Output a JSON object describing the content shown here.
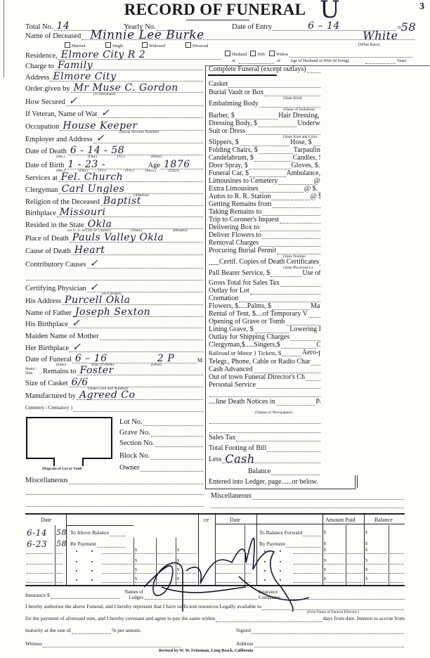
{
  "header": {
    "title": "RECORD OF FUNERAL",
    "page_mark": "U",
    "page_number": "3",
    "total_no_label": "Total No.",
    "total_no_value": "14",
    "yearly_no_label": "Yearly No.",
    "date_of_entry_label": "Date of Entry",
    "date_of_entry_value": "6 – 14",
    "year_prefix": "19",
    "year_value": "58"
  },
  "deceased": {
    "name_label": "Name of Deceased",
    "name_value": "Minnie Lee Burke",
    "race_value": "White",
    "race_note": "(What Race)",
    "marital": [
      "Married",
      "Single",
      "Widowed",
      "Divorced"
    ],
    "spouse_boxes": [
      "Husband",
      "Wife",
      "Widow"
    ],
    "spouse_or": "or",
    "spouse_of": "of",
    "spouse_age_label": "Age of Husband or Wife (if living)",
    "spouse_age_unit": "Years",
    "residence_label": "Residence,",
    "residence_value": "Elmore City R 2"
  },
  "left_fields": [
    {
      "label": "Charge to",
      "value": "Family"
    },
    {
      "label": "Address",
      "value": "Elmore City"
    },
    {
      "label": "Order given by",
      "value": "Mr Muse C. Gordon",
      "note": "(or informant)"
    },
    {
      "label": "How Secured",
      "value": "✓"
    },
    {
      "label": "If Veteran, Name of War",
      "value": "✓"
    },
    {
      "label": "Occupation",
      "value": "House Keeper",
      "note": "(Social Security Number)"
    },
    {
      "label": "Employer and Address",
      "value": "✓"
    },
    {
      "label": "Date of Death",
      "value": "6 - 14 - 58",
      "notes": [
        "(Mo.)",
        "(Day)",
        "(Yr.)",
        "(Hour)"
      ]
    },
    {
      "label": "Date of Birth",
      "value": "1 - 23 -",
      "suffix": "Age",
      "suffix_value": "1876",
      "notes": [
        "(Mo.)",
        "(Day)",
        "(Yr.)",
        "(Yrs.)",
        "(Mos.)",
        "(Days)"
      ]
    },
    {
      "label": "Services at",
      "value": "Fel. Church"
    },
    {
      "label": "Clergyman",
      "value": "Carl Ungles",
      "note": "(Address)"
    },
    {
      "label": "Religion of the Deceased",
      "value": "Baptist"
    },
    {
      "label": "Birthplace",
      "value": "Missouri"
    },
    {
      "label": "Resided in the State",
      "value": "Okla",
      "notes": [
        "(or U. S. or City or County)",
        "(Years)",
        "(Months)"
      ]
    },
    {
      "label": "Place of Death",
      "value": "Pauls Valley Okla"
    },
    {
      "label": "Cause of Death",
      "value": "Heart"
    },
    {
      "label": "Contributory Causes",
      "value": "✓"
    },
    {
      "label": "",
      "value": ""
    },
    {
      "label": "Certifying Physician",
      "value": "✓",
      "note": "(or Coroner)"
    },
    {
      "label": "His Address",
      "value": "Purcell Okla"
    },
    {
      "label": "Name of Father",
      "value": "Joseph Sexton"
    },
    {
      "label": "His Birthplace",
      "value": "✓"
    },
    {
      "label": "Maiden Name of Mother",
      "value": ""
    },
    {
      "label": "Her Birthplace",
      "value": "✓"
    },
    {
      "label": "Date of Funeral",
      "value": "6 –   16",
      "suffix": "",
      "suffix_value": "2 P",
      "end": "M.",
      "notes": [
        "(Date)",
        "(Day of Week)",
        "(Hour)"
      ]
    },
    {
      "label": "Remains to",
      "prefix": "Motor / Ship",
      "value": "Foster"
    },
    {
      "label": "Size of Casket",
      "value": "6/6",
      "note": "(State Color and Number)"
    },
    {
      "label": "Manufactured by",
      "value": "Agreed Co"
    },
    {
      "label": "Cemetery / Crematory }",
      "value": ""
    }
  ],
  "cemetery": {
    "diagram_caption": "Diagram of Lot or Vault",
    "lot_label": "Lot No.",
    "grave_label": "Grave No.",
    "section_label": "Section No.",
    "block_label": "Block No.",
    "owner_label": "Owner",
    "misc_label": "Miscellaneous"
  },
  "charges": [
    {
      "label": "Complete Funeral (except outlays)"
    },
    {
      "label": "Casket"
    },
    {
      "label": "Burial Vault or Box",
      "note": "(State Kind)"
    },
    {
      "label": "Embalming Body",
      "note": "(Name of Embalmer"
    },
    {
      "label": "Barber, $",
      "label2": "Hair Dressing,"
    },
    {
      "label": "Dressing Body, $",
      "label2": "Underwe"
    },
    {
      "label": "Suit or Dress",
      "note": "(State Kind and Color"
    },
    {
      "label": "Slippers, $",
      "label2": "Hose, $"
    },
    {
      "label": "Folding Chairs, $",
      "label2": "Tarpaulin, $"
    },
    {
      "label": "Candelabrum, $",
      "label2": "Candles, $."
    },
    {
      "label": "Door Spray, $",
      "label2": "Gloves, $."
    },
    {
      "label": "Funeral Car, $",
      "label2": "Ambulance, $"
    },
    {
      "label": "Limousines to Cemetery",
      "label2": "@ $."
    },
    {
      "label": "Extra Limousines",
      "label2": "@ $."
    },
    {
      "label": "Autos to R. R. Station",
      "label2": "@ $."
    },
    {
      "label": "Getting Remains from"
    },
    {
      "label": "Taking Remains to"
    },
    {
      "label": "Trip to Coroner's Inquest"
    },
    {
      "label": "Delivering Box to"
    },
    {
      "label": "Deliver Flowers to"
    },
    {
      "label": "Removal Charges"
    },
    {
      "label": "Procuring Burial Permit",
      "note": "(State Number"
    },
    {
      "label": "___Certif. Copies of Death Certificates",
      "note": "(State Physician's a"
    },
    {
      "label": "Pall Bearer Service, $",
      "label2": "Use of Ch"
    },
    {
      "label": "Gross Total for Sales Tax"
    },
    {
      "label": "Outlay for Lot"
    },
    {
      "label": "Cremation"
    },
    {
      "label": "Flowers, $.....Palms, $",
      "label2": "Matt"
    },
    {
      "label": "Rental of Tent, $....of Temporary V"
    },
    {
      "label": "Opening of Grave or Tomb"
    },
    {
      "label": "Lining Grave, $",
      "label2": "Lowering De"
    },
    {
      "label": "Outlay for Shipping Charges"
    },
    {
      "label": "Clergyman,$.....Singers,$",
      "label2": "Org"
    },
    {
      "label": "Railroad or Motor } Tickets, $",
      "label2": "Aero-plane Se"
    },
    {
      "label": "Telegr., Phone, Cable or Radio Char"
    },
    {
      "label": "Cash Advanced"
    },
    {
      "label": "Out of town Funeral Director's Ch"
    },
    {
      "label": "Personal Service"
    },
    {
      "label": ""
    },
    {
      "label": "....line Death Notices in",
      "label2": "Pa"
    },
    {
      "label": "",
      "note": "(Names of Newspapers)"
    },
    {
      "label": ""
    },
    {
      "label": ""
    },
    {
      "label": "Sales Tax"
    },
    {
      "label": "Total Footing of Bill"
    },
    {
      "label": "Less",
      "value": "Cash"
    },
    {
      "label": "Balance"
    }
  ],
  "ledger_entry": {
    "label": "Entered into Ledger, page......or below.",
    "misc_label": "Miscellaneous"
  },
  "ledger": {
    "left_headers": {
      "date": "Date",
      "balance": "ce"
    },
    "right_headers": {
      "date": "Date",
      "amount_paid": "Amount Paid",
      "balance": "Balance"
    },
    "left_rows": [
      {
        "desc": "To Above Balance",
        "date": "6-14",
        "yr": "58"
      },
      {
        "desc": "By Payment",
        "date": "6-23",
        "yr": "58"
      }
    ],
    "right_rows": [
      {
        "desc": "To Balance Forward"
      },
      {
        "desc": "By Payment"
      }
    ],
    "dollar": "$"
  },
  "authorization": {
    "insurance_label": "Insurance $",
    "lodges_label": "Names of Lodges",
    "companies_label": "Insurance Companies",
    "line1": "I hereby authorize the above Funeral, and I hereby represent that I have sufficient resources Legally available to",
    "director_note": "(Firm Name of Funeral Director.)",
    "line2a": "for the payment of aforesaid sum, and I hereby covenant and agree to pay the same within",
    "line2b": "days from date.   Interest to accrue from",
    "line3": "maturity at the rate of",
    "line3b": "% per annum.",
    "signed_label": "Signed",
    "witness_label": "Witness",
    "address_label": "Address",
    "revised": "Revised by W. W. Feineman, Long Beach, California"
  }
}
